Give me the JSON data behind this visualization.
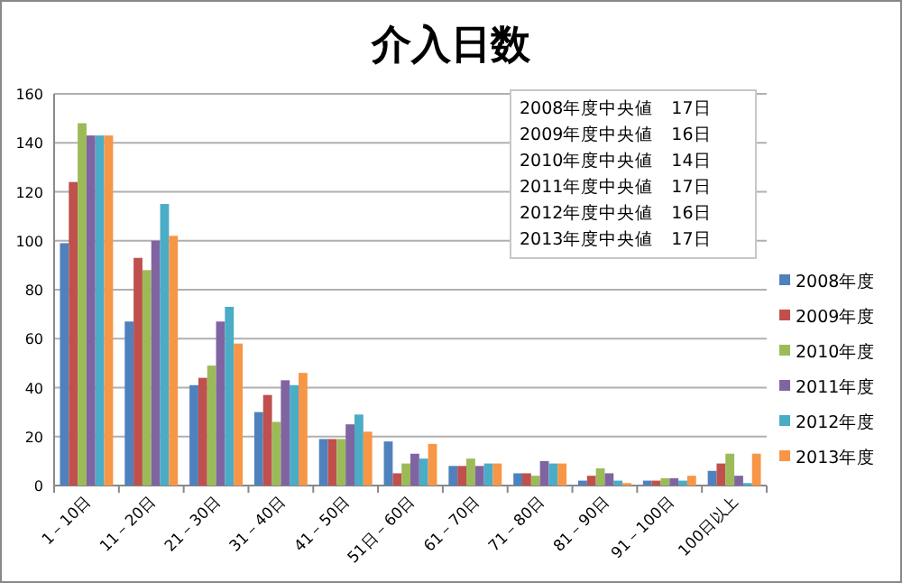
{
  "chart_data": {
    "type": "bar",
    "title": "介入日数",
    "categories": [
      "1－10日",
      "11－20日",
      "21－30日",
      "31－40日",
      "41－50日",
      "51日－60日",
      "61－70日",
      "71－80日",
      "81－90日",
      "91－100日",
      "100日以上"
    ],
    "series": [
      {
        "name": "2008年度",
        "color": "#4f81bd",
        "values": [
          99,
          67,
          41,
          30,
          19,
          18,
          8,
          5,
          2,
          2,
          6
        ]
      },
      {
        "name": "2009年度",
        "color": "#c0504d",
        "values": [
          124,
          93,
          44,
          37,
          19,
          5,
          8,
          5,
          4,
          2,
          9
        ]
      },
      {
        "name": "2010年度",
        "color": "#9bbb59",
        "values": [
          148,
          88,
          49,
          26,
          19,
          9,
          11,
          4,
          7,
          3,
          13
        ]
      },
      {
        "name": "2011年度",
        "color": "#8064a2",
        "values": [
          143,
          100,
          67,
          43,
          25,
          13,
          8,
          10,
          5,
          3,
          4
        ]
      },
      {
        "name": "2012年度",
        "color": "#4bacc6",
        "values": [
          143,
          115,
          73,
          41,
          29,
          11,
          9,
          9,
          2,
          2,
          1
        ]
      },
      {
        "name": "2013年度",
        "color": "#f79646",
        "values": [
          143,
          102,
          58,
          46,
          22,
          17,
          9,
          9,
          1,
          4,
          13
        ]
      }
    ],
    "ylim": [
      0,
      160
    ],
    "yticks": [
      0,
      20,
      40,
      60,
      80,
      100,
      120,
      140,
      160
    ],
    "grid": "y",
    "legend": "right",
    "annotations": [
      "2008年度中央値　17日",
      "2009年度中央値　16日",
      "2010年度中央値　14日",
      "2011年度中央値　17日",
      "2012年度中央値　16日",
      "2013年度中央値　17日"
    ]
  }
}
